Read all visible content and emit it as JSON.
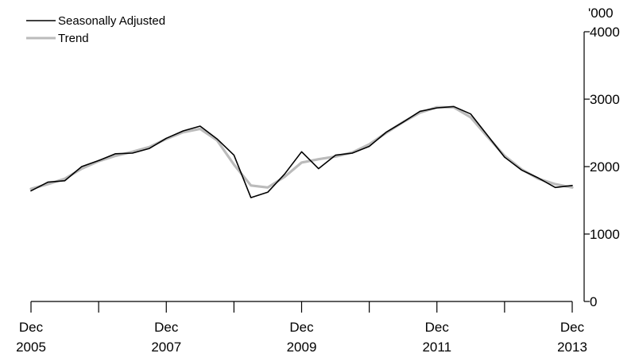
{
  "chart_data": {
    "type": "line",
    "unit_label": "'000",
    "x_tick_labels": [
      {
        "month": "Dec",
        "year": "2005"
      },
      {
        "month": "Dec",
        "year": "2007"
      },
      {
        "month": "Dec",
        "year": "2009"
      },
      {
        "month": "Dec",
        "year": "2011"
      },
      {
        "month": "Dec",
        "year": "2013"
      }
    ],
    "x_range": [
      "2005-12",
      "2013-12"
    ],
    "y_ticks": [
      0,
      1000,
      2000,
      3000,
      4000
    ],
    "ylim": [
      0,
      4000
    ],
    "legend_position": "top-left",
    "grid": false,
    "series": [
      {
        "name": "Seasonally Adjusted",
        "color": "#000000",
        "x": [
          "2005-12",
          "2006-03",
          "2006-06",
          "2006-09",
          "2006-12",
          "2007-03",
          "2007-06",
          "2007-09",
          "2007-12",
          "2008-03",
          "2008-06",
          "2008-09",
          "2008-12",
          "2009-03",
          "2009-06",
          "2009-09",
          "2009-12",
          "2010-03",
          "2010-06",
          "2010-09",
          "2010-12",
          "2011-03",
          "2011-06",
          "2011-09",
          "2011-12",
          "2012-03",
          "2012-06",
          "2012-09",
          "2012-12",
          "2013-03",
          "2013-06",
          "2013-09",
          "2013-12"
        ],
        "values": [
          1640,
          1770,
          1790,
          2000,
          2090,
          2190,
          2200,
          2270,
          2420,
          2530,
          2600,
          2410,
          2170,
          1540,
          1620,
          1890,
          2220,
          1970,
          2170,
          2200,
          2300,
          2510,
          2660,
          2820,
          2870,
          2890,
          2780,
          2460,
          2140,
          1950,
          1830,
          1690,
          1720
        ]
      },
      {
        "name": "Trend",
        "color": "#bbbbbb",
        "x": [
          "2005-12",
          "2006-03",
          "2006-06",
          "2006-09",
          "2006-12",
          "2007-03",
          "2007-06",
          "2007-09",
          "2007-12",
          "2008-03",
          "2008-06",
          "2008-09",
          "2008-12",
          "2009-03",
          "2009-06",
          "2009-09",
          "2009-12",
          "2010-03",
          "2010-06",
          "2010-09",
          "2010-12",
          "2011-03",
          "2011-06",
          "2011-09",
          "2011-12",
          "2012-03",
          "2012-06",
          "2012-09",
          "2012-12",
          "2013-03",
          "2013-06",
          "2013-09",
          "2013-12"
        ],
        "values": [
          1670,
          1740,
          1820,
          1970,
          2080,
          2160,
          2220,
          2290,
          2410,
          2510,
          2560,
          2390,
          2030,
          1720,
          1690,
          1850,
          2060,
          2110,
          2150,
          2210,
          2330,
          2500,
          2660,
          2800,
          2880,
          2880,
          2730,
          2440,
          2160,
          1960,
          1820,
          1740,
          1690
        ]
      }
    ]
  }
}
